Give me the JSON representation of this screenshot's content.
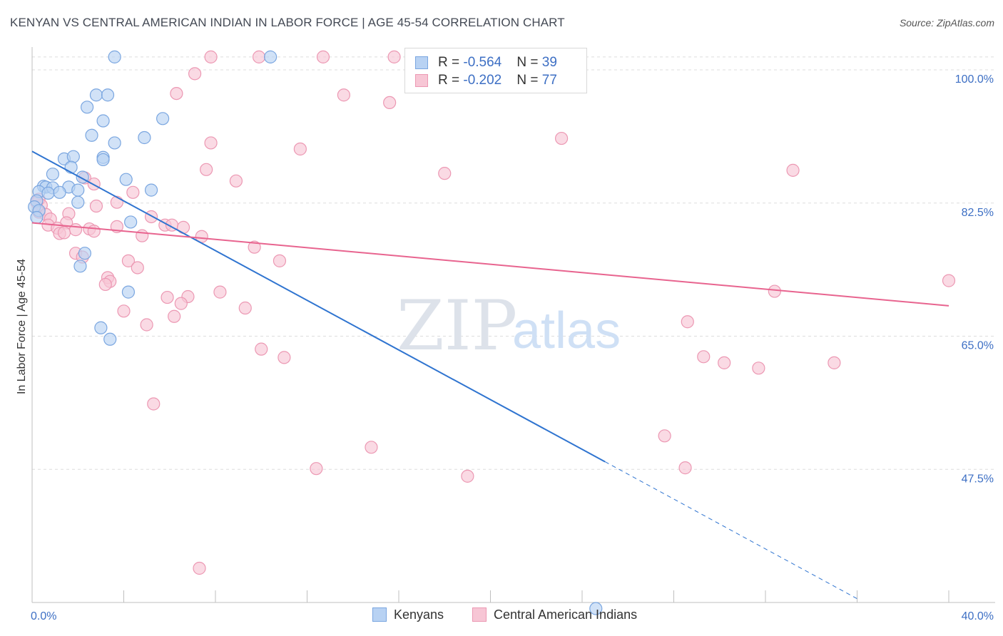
{
  "title": "KENYAN VS CENTRAL AMERICAN INDIAN IN LABOR FORCE | AGE 45-54 CORRELATION CHART",
  "source": "Source: ZipAtlas.com",
  "watermark": {
    "zip": "ZIP",
    "atlas": "atlas"
  },
  "colors": {
    "blue_fill": "#b8d2f3",
    "blue_stroke": "#7aa6e0",
    "blue_line": "#2f74d0",
    "pink_fill": "#f7c6d5",
    "pink_stroke": "#ec98b3",
    "pink_line": "#e8648f",
    "grid": "#dddddd",
    "axis_label": "#3d6fc4"
  },
  "legend": {
    "kenyans": {
      "r_label": "R = ",
      "r_value": "-0.564",
      "n_label": "N = ",
      "n_value": "39"
    },
    "central": {
      "r_label": "R = ",
      "r_value": "-0.202",
      "n_label": "N = ",
      "n_value": "77"
    }
  },
  "bottom_legend": {
    "kenyans": "Kenyans",
    "central": "Central American Indians"
  },
  "chart_data": {
    "type": "scatter",
    "title": "KENYAN VS CENTRAL AMERICAN INDIAN IN LABOR FORCE | AGE 45-54 CORRELATION CHART",
    "xlabel": "",
    "ylabel": "In Labor Force | Age 45-54",
    "xlim": [
      0,
      40
    ],
    "ylim": [
      30,
      103
    ],
    "x_tick_labels": [
      {
        "value": 0,
        "label": "0.0%"
      },
      {
        "value": 40,
        "label": "40.0%"
      }
    ],
    "y_tick_labels": [
      {
        "value": 100,
        "label": "100.0%"
      },
      {
        "value": 82.5,
        "label": "82.5%"
      },
      {
        "value": 65,
        "label": "65.0%"
      },
      {
        "value": 47.5,
        "label": "47.5%"
      }
    ],
    "x_minor_ticks": [
      4,
      8,
      12,
      16,
      20,
      24,
      28,
      32,
      36,
      40
    ],
    "series": [
      {
        "name": "Kenyans",
        "R": -0.564,
        "N": 39,
        "points": [
          [
            3.6,
            101.7
          ],
          [
            10.4,
            101.7
          ],
          [
            2.8,
            96.7
          ],
          [
            3.3,
            96.7
          ],
          [
            2.4,
            95.1
          ],
          [
            3.1,
            93.3
          ],
          [
            5.7,
            93.6
          ],
          [
            2.6,
            91.4
          ],
          [
            3.6,
            90.4
          ],
          [
            4.9,
            91.1
          ],
          [
            1.4,
            88.3
          ],
          [
            1.8,
            88.6
          ],
          [
            3.1,
            88.5
          ],
          [
            3.1,
            88.2
          ],
          [
            1.7,
            87.2
          ],
          [
            0.9,
            86.3
          ],
          [
            2.2,
            85.9
          ],
          [
            4.1,
            85.6
          ],
          [
            0.5,
            84.7
          ],
          [
            0.6,
            84.6
          ],
          [
            0.9,
            84.5
          ],
          [
            1.6,
            84.6
          ],
          [
            2.0,
            84.2
          ],
          [
            5.2,
            84.2
          ],
          [
            0.3,
            84.0
          ],
          [
            0.7,
            83.8
          ],
          [
            1.2,
            83.9
          ],
          [
            0.2,
            82.8
          ],
          [
            2.0,
            82.6
          ],
          [
            0.1,
            82.0
          ],
          [
            0.3,
            81.5
          ],
          [
            0.2,
            80.6
          ],
          [
            4.3,
            80.0
          ],
          [
            2.3,
            75.9
          ],
          [
            2.1,
            74.2
          ],
          [
            4.2,
            70.8
          ],
          [
            3.0,
            66.1
          ],
          [
            3.4,
            64.6
          ],
          [
            24.6,
            29.2
          ]
        ],
        "trend": {
          "x0": 0,
          "y0": 89.3,
          "x1": 25.0,
          "y1": 48.5,
          "dash_x1": 36.0,
          "dash_y1": 30.5
        }
      },
      {
        "name": "Central American Indians",
        "R": -0.202,
        "N": 77,
        "points": [
          [
            7.8,
            101.7
          ],
          [
            9.9,
            101.7
          ],
          [
            12.7,
            101.7
          ],
          [
            15.8,
            101.7
          ],
          [
            22.6,
            101.7
          ],
          [
            17.2,
            101.2
          ],
          [
            7.1,
            99.5
          ],
          [
            6.3,
            96.9
          ],
          [
            13.6,
            96.7
          ],
          [
            15.6,
            95.7
          ],
          [
            23.1,
            91.0
          ],
          [
            7.8,
            90.4
          ],
          [
            11.7,
            89.6
          ],
          [
            7.6,
            86.9
          ],
          [
            18.0,
            86.4
          ],
          [
            33.2,
            86.8
          ],
          [
            8.9,
            85.4
          ],
          [
            2.3,
            85.8
          ],
          [
            2.7,
            85.0
          ],
          [
            4.4,
            83.9
          ],
          [
            0.3,
            83.0
          ],
          [
            0.4,
            82.2
          ],
          [
            0.2,
            82.6
          ],
          [
            0.3,
            81.3
          ],
          [
            3.7,
            82.6
          ],
          [
            2.8,
            82.1
          ],
          [
            0.6,
            81.0
          ],
          [
            1.6,
            81.1
          ],
          [
            0.8,
            80.4
          ],
          [
            1.5,
            79.9
          ],
          [
            5.2,
            80.7
          ],
          [
            0.7,
            79.6
          ],
          [
            1.1,
            79.2
          ],
          [
            3.7,
            79.4
          ],
          [
            5.8,
            79.6
          ],
          [
            6.1,
            79.6
          ],
          [
            6.6,
            79.3
          ],
          [
            2.5,
            79.1
          ],
          [
            1.9,
            79.0
          ],
          [
            2.7,
            78.8
          ],
          [
            1.2,
            78.5
          ],
          [
            1.4,
            78.6
          ],
          [
            4.8,
            78.2
          ],
          [
            7.4,
            78.1
          ],
          [
            9.7,
            76.7
          ],
          [
            1.9,
            75.9
          ],
          [
            2.2,
            75.4
          ],
          [
            4.2,
            74.9
          ],
          [
            4.6,
            74.0
          ],
          [
            10.8,
            74.9
          ],
          [
            3.3,
            72.7
          ],
          [
            3.4,
            72.2
          ],
          [
            3.2,
            71.8
          ],
          [
            8.2,
            70.8
          ],
          [
            5.9,
            70.1
          ],
          [
            6.8,
            70.2
          ],
          [
            6.5,
            69.3
          ],
          [
            9.3,
            68.7
          ],
          [
            4.0,
            68.3
          ],
          [
            6.2,
            67.6
          ],
          [
            5.0,
            66.5
          ],
          [
            28.6,
            66.9
          ],
          [
            32.4,
            70.9
          ],
          [
            40.0,
            72.3
          ],
          [
            10.0,
            63.3
          ],
          [
            11.0,
            62.2
          ],
          [
            29.3,
            62.3
          ],
          [
            30.2,
            61.5
          ],
          [
            31.7,
            60.8
          ],
          [
            35.0,
            61.5
          ],
          [
            5.3,
            56.1
          ],
          [
            27.6,
            51.9
          ],
          [
            14.8,
            50.4
          ],
          [
            12.4,
            47.6
          ],
          [
            19.0,
            46.6
          ],
          [
            28.5,
            47.7
          ],
          [
            7.3,
            34.5
          ]
        ],
        "trend": {
          "x0": 0,
          "y0": 79.9,
          "x1": 40.0,
          "y1": 69.0
        }
      }
    ]
  }
}
